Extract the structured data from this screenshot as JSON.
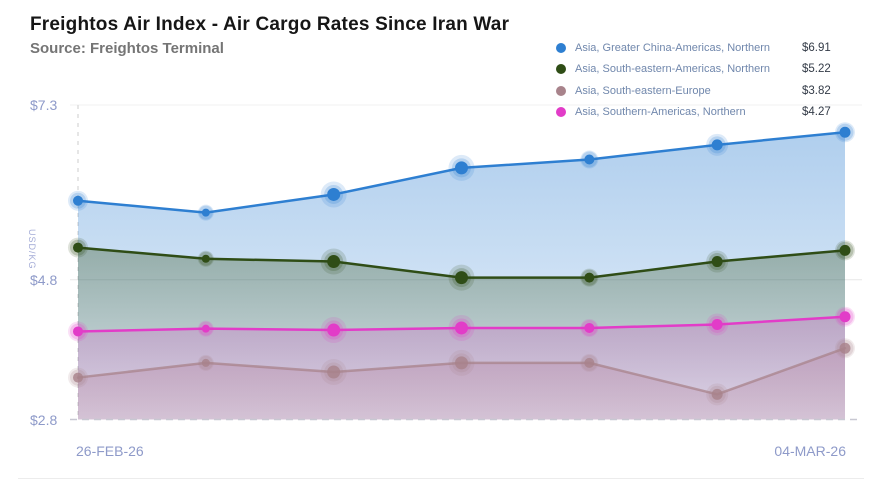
{
  "header": {
    "title": "Freightos Air Index - Air Cargo Rates Since Iran War",
    "source": "Source: Freightos Terminal"
  },
  "chart_data": {
    "type": "area",
    "title": "Freightos Air Index - Air Cargo Rates Since Iran War",
    "subtitle": "Source: Freightos Terminal",
    "ylabel": "USD/KG",
    "ylim": [
      2.8,
      7.3
    ],
    "y_ticks": [
      {
        "label": "$7.3",
        "value": 7.3
      },
      {
        "label": "$4.8",
        "value": 4.8
      },
      {
        "label": "$2.8",
        "value": 2.8
      }
    ],
    "x_tick_labels": [
      "26-FEB-26",
      "04-MAR-26"
    ],
    "x_dates": [
      "26-FEB-26",
      "27-FEB-26",
      "28-FEB-26",
      "01-MAR-26",
      "02-MAR-26",
      "03-MAR-26",
      "04-MAR-26"
    ],
    "legend_position": "top-right",
    "grid": "minimal-dashed-frame",
    "series": [
      {
        "name": "Asia, Greater China-Americas, Northern",
        "color": "#2e7fd1",
        "latest_label": "$6.91",
        "values": [
          5.93,
          5.76,
          6.02,
          6.4,
          6.52,
          6.73,
          6.91
        ]
      },
      {
        "name": "Asia, South-eastern-Americas, Northern",
        "color": "#2f4d16",
        "latest_label": "$5.22",
        "values": [
          5.26,
          5.1,
          5.06,
          4.83,
          4.83,
          5.06,
          5.22
        ]
      },
      {
        "name": "Asia, South-eastern-Europe",
        "color": "#a8838b",
        "latest_label": "$3.82",
        "values": [
          3.4,
          3.61,
          3.48,
          3.61,
          3.61,
          3.16,
          3.82
        ]
      },
      {
        "name": "Asia, Southern-Americas, Northern",
        "color": "#e23cc8",
        "latest_label": "$4.27",
        "values": [
          4.06,
          4.1,
          4.08,
          4.11,
          4.11,
          4.16,
          4.27
        ]
      }
    ],
    "marker_core_radii": [
      5,
      4,
      6.5,
      6.5,
      5,
      5.5,
      5.5
    ],
    "marker_halo_radii": [
      10,
      8,
      13,
      13,
      9,
      11,
      10
    ]
  }
}
